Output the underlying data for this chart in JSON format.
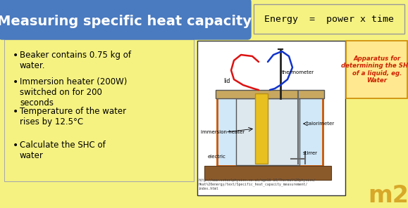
{
  "title": "Measuring specific heat capacity",
  "title_bg": "#4a7abf",
  "title_color": "white",
  "bg_color": "#f5f282",
  "energy_eq": "Energy  =  power x time",
  "bullet_points": [
    "Beaker contains 0.75 kg of\nwater.",
    "Immersion heater (200W)\nswitched on for 200\nseconds",
    "Temperature of the water\nrises by 12.5°C",
    "Calculate the SHC of\nwater"
  ],
  "apparatus_text": "Apparatus for\ndetermining the SHC\nof a liquid, eg.\nWater",
  "apparatus_color": "#cc2200",
  "apparatus_box_color": "#ffe890",
  "url_text": "http://www.schoolphysics.co.uk/age16-19/Thermal%20physics/\nHeat%20energy/text/Specific_heat_capacity_measurement/\nindex.html",
  "bullet_box_bg": "#f5f282",
  "diagram_bg": "white",
  "diagram_border": "#333333",
  "title_fontsize": 14,
  "bullet_fontsize": 8.5,
  "energy_fontsize": 9.5
}
